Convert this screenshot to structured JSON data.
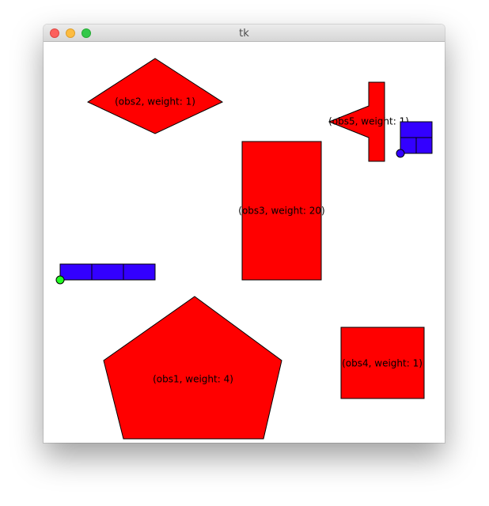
{
  "window": {
    "title": "tk",
    "controls": {
      "close": "close-icon",
      "minimize": "minimize-icon",
      "maximize": "maximize-icon"
    }
  },
  "canvas": {
    "background": "#ffffff",
    "obstacles": [
      {
        "id": "obs1",
        "label": "(obs1, weight: 4)",
        "weight": 4,
        "color": "#ff0000"
      },
      {
        "id": "obs2",
        "label": "(obs2, weight: 1)",
        "weight": 1,
        "color": "#ff0000"
      },
      {
        "id": "obs3",
        "label": "(obs3, weight: 20)",
        "weight": 20,
        "color": "#ff0000"
      },
      {
        "id": "obs4",
        "label": "(obs4, weight: 1)",
        "weight": 1,
        "color": "#ff0000"
      },
      {
        "id": "obs5",
        "label": "(obs5, weight: 1)",
        "weight": 1,
        "color": "#ff0000"
      }
    ],
    "robots": [
      {
        "id": "robot-start",
        "body_color": "#3300ff",
        "marker_color": "#22ff22",
        "cells": 3
      },
      {
        "id": "robot-goal",
        "body_color": "#3300ff",
        "marker_color": "#3300ff",
        "cells": 3
      }
    ]
  }
}
